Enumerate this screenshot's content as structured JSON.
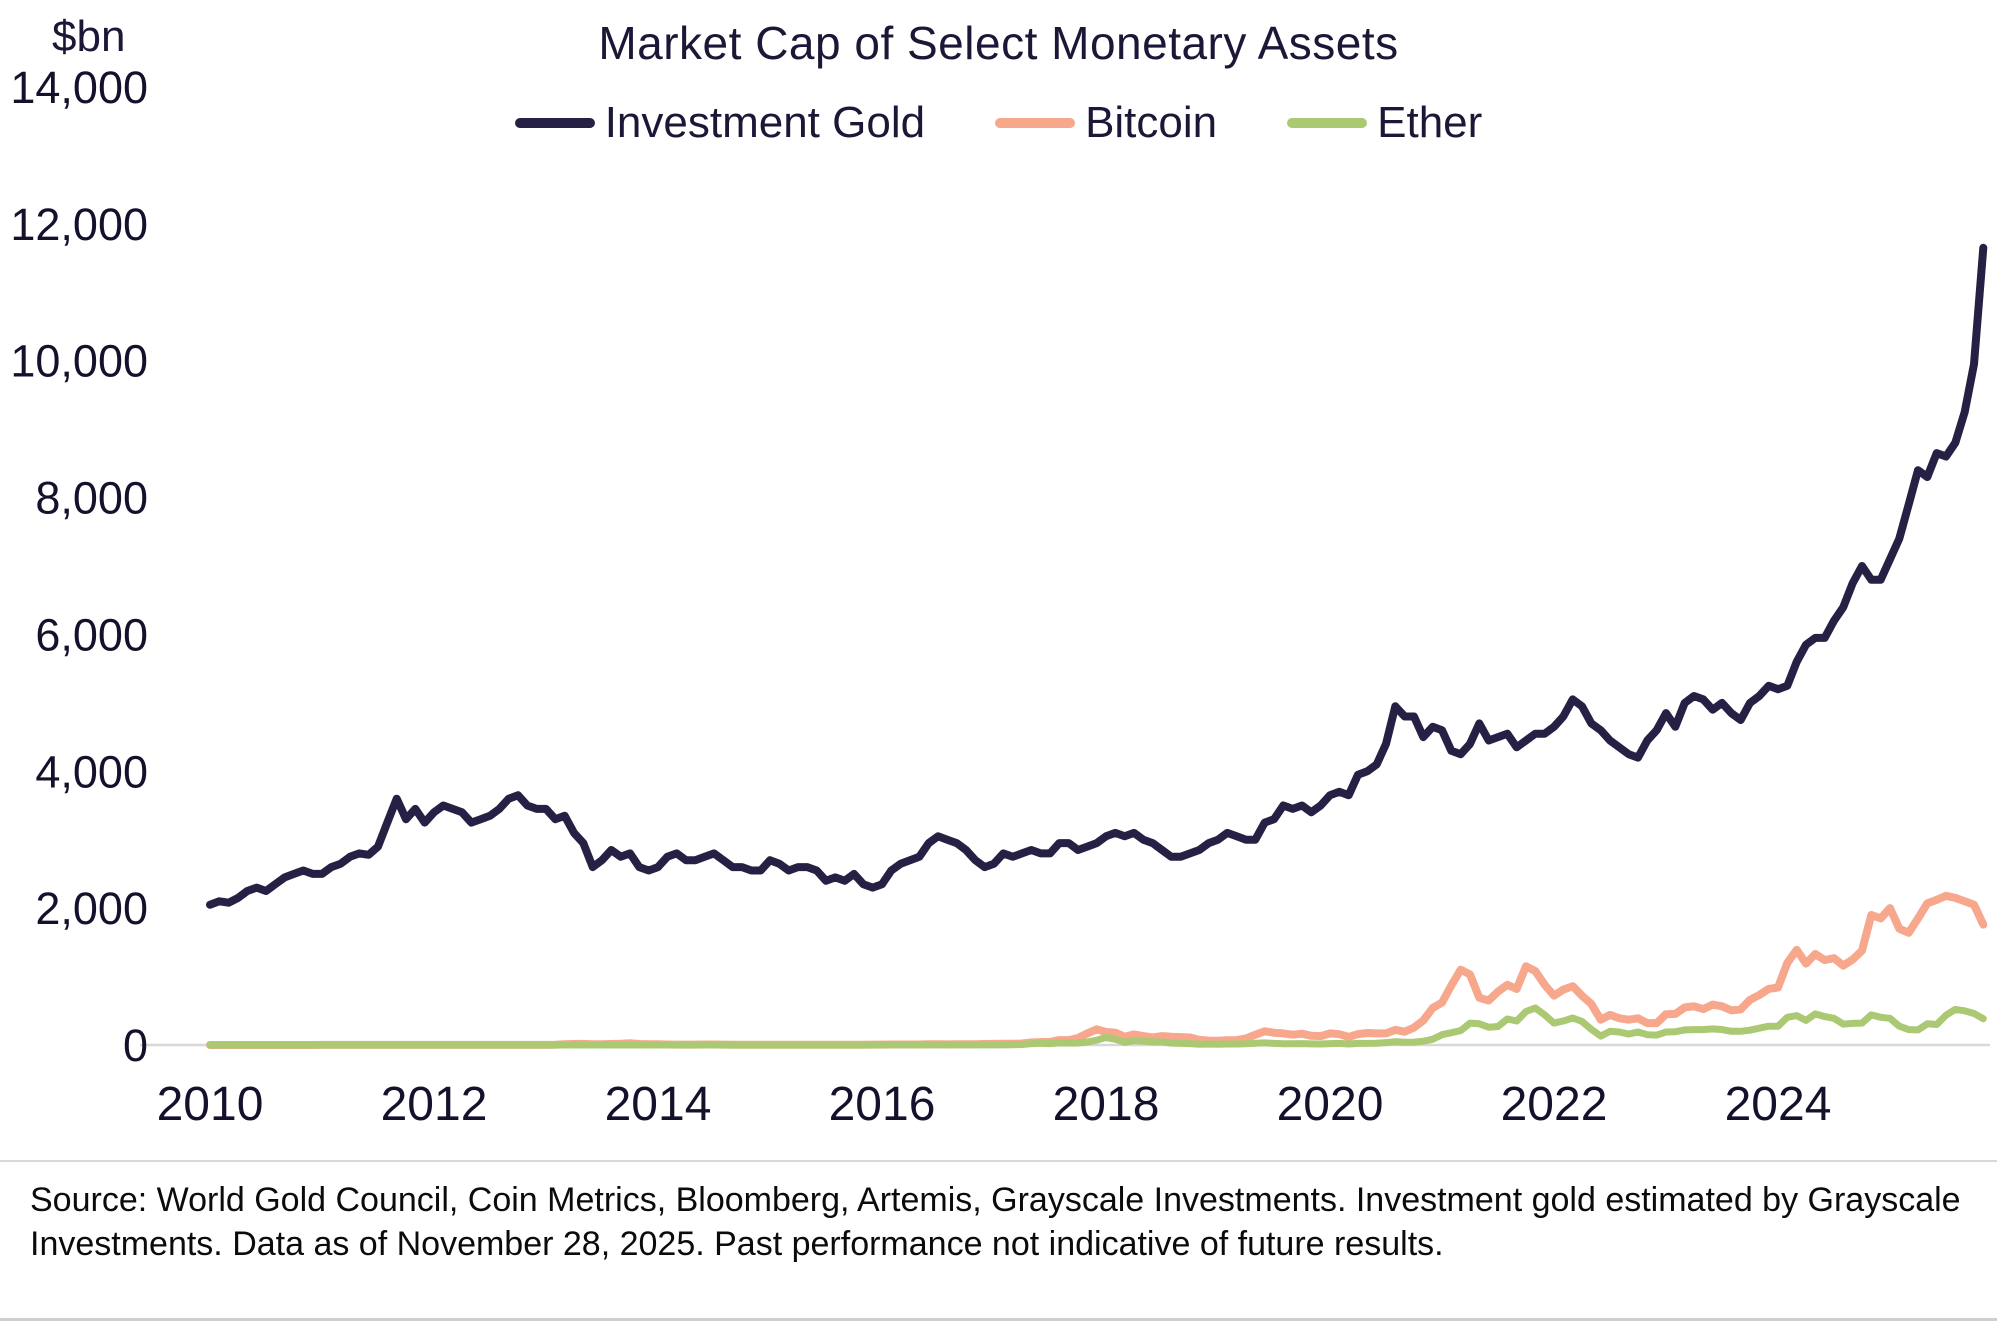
{
  "chart_data": {
    "type": "line",
    "title": "Market Cap of Select Monetary Assets",
    "unit_label": "$bn",
    "xlabel": "",
    "ylabel": "$bn",
    "start_year": 2010,
    "end_label": "November 2025",
    "x_ticks": [
      2010,
      2012,
      2014,
      2016,
      2018,
      2020,
      2022,
      2024
    ],
    "ylim": [
      0,
      14000
    ],
    "y_tick_step": 2000,
    "grid": false,
    "legend_position": "top-center",
    "text_color": "#15112c",
    "axis_line_color": "#d8d8d8",
    "series": [
      {
        "name": "Investment Gold",
        "color": "#262144",
        "stroke_width": 8,
        "values": [
          2050,
          2100,
          2080,
          2150,
          2250,
          2300,
          2250,
          2350,
          2450,
          2500,
          2550,
          2500,
          2500,
          2600,
          2650,
          2750,
          2800,
          2780,
          2900,
          3250,
          3600,
          3300,
          3450,
          3250,
          3400,
          3500,
          3450,
          3400,
          3250,
          3300,
          3350,
          3450,
          3600,
          3650,
          3500,
          3450,
          3450,
          3300,
          3350,
          3100,
          2950,
          2600,
          2700,
          2850,
          2750,
          2800,
          2600,
          2550,
          2600,
          2750,
          2800,
          2700,
          2700,
          2750,
          2800,
          2700,
          2600,
          2600,
          2550,
          2550,
          2700,
          2650,
          2550,
          2600,
          2600,
          2550,
          2400,
          2450,
          2400,
          2500,
          2350,
          2300,
          2350,
          2550,
          2650,
          2700,
          2750,
          2950,
          3050,
          3000,
          2950,
          2850,
          2700,
          2600,
          2650,
          2800,
          2750,
          2800,
          2850,
          2800,
          2800,
          2950,
          2950,
          2850,
          2900,
          2950,
          3050,
          3100,
          3050,
          3100,
          3000,
          2950,
          2850,
          2750,
          2750,
          2800,
          2850,
          2950,
          3000,
          3100,
          3050,
          3000,
          3000,
          3250,
          3300,
          3500,
          3450,
          3500,
          3400,
          3500,
          3650,
          3700,
          3650,
          3950,
          4000,
          4100,
          4400,
          4950,
          4800,
          4800,
          4500,
          4650,
          4600,
          4300,
          4250,
          4400,
          4700,
          4450,
          4500,
          4550,
          4350,
          4450,
          4550,
          4550,
          4650,
          4800,
          5050,
          4950,
          4700,
          4600,
          4450,
          4350,
          4250,
          4200,
          4450,
          4600,
          4850,
          4650,
          5000,
          5100,
          5050,
          4900,
          5000,
          4850,
          4750,
          5000,
          5100,
          5250,
          5200,
          5250,
          5600,
          5850,
          5950,
          5950,
          6200,
          6400,
          6750,
          7000,
          6800,
          6800,
          7100,
          7400,
          7900,
          8400,
          8300,
          8650,
          8600,
          8800,
          9250,
          9950,
          11650
        ]
      },
      {
        "name": "Bitcoin",
        "color": "#f7a78c",
        "stroke_width": 8,
        "values": [
          0,
          0,
          0,
          0,
          0,
          0,
          0,
          0,
          0,
          0,
          0,
          0,
          1,
          1,
          1,
          2,
          2,
          2,
          2,
          1,
          1,
          1,
          1,
          1,
          1,
          1,
          1,
          1,
          1,
          1,
          1,
          1,
          1,
          1,
          1,
          1,
          2,
          3,
          11,
          14,
          16,
          12,
          11,
          14,
          17,
          25,
          14,
          10,
          10,
          8,
          6,
          6,
          6,
          8,
          8,
          6,
          5,
          4,
          5,
          4,
          3,
          4,
          4,
          3,
          3,
          4,
          4,
          3,
          3,
          4,
          5,
          6,
          6,
          7,
          7,
          7,
          8,
          10,
          10,
          9,
          10,
          11,
          12,
          15,
          16,
          19,
          17,
          22,
          37,
          42,
          45,
          71,
          72,
          103,
          170,
          230,
          190,
          180,
          120,
          155,
          130,
          110,
          130,
          120,
          115,
          110,
          75,
          65,
          62,
          68,
          72,
          95,
          150,
          200,
          180,
          170,
          150,
          165,
          135,
          130,
          170,
          158,
          118,
          160,
          175,
          170,
          170,
          220,
          195,
          255,
          360,
          540,
          620,
          870,
          1100,
          1030,
          690,
          650,
          780,
          880,
          820,
          1150,
          1080,
          880,
          720,
          810,
          860,
          720,
          600,
          370,
          440,
          390,
          370,
          390,
          320,
          320,
          450,
          455,
          550,
          565,
          525,
          590,
          565,
          505,
          520,
          660,
          730,
          820,
          840,
          1200,
          1390,
          1190,
          1330,
          1240,
          1270,
          1160,
          1250,
          1380,
          1900,
          1850,
          2000,
          1700,
          1640,
          1850,
          2070,
          2120,
          2180,
          2150,
          2100,
          2050,
          1760
        ]
      },
      {
        "name": "Ether",
        "color": "#abc873",
        "stroke_width": 7,
        "values": [
          0,
          0,
          0,
          0,
          0,
          0,
          0,
          0,
          0,
          0,
          0,
          0,
          0,
          0,
          0,
          0,
          0,
          0,
          0,
          0,
          0,
          0,
          0,
          0,
          0,
          0,
          0,
          0,
          0,
          0,
          0,
          0,
          0,
          0,
          0,
          0,
          0,
          0,
          0,
          0,
          0,
          0,
          0,
          0,
          0,
          0,
          0,
          0,
          0,
          0,
          0,
          0,
          0,
          0,
          0,
          0,
          0,
          0,
          0,
          0,
          0,
          0,
          0,
          0,
          0,
          0,
          0,
          0,
          0,
          0,
          0,
          0,
          1,
          1,
          1,
          1,
          1,
          1,
          1,
          1,
          1,
          1,
          1,
          1,
          1,
          2,
          4,
          7,
          21,
          26,
          20,
          30,
          28,
          29,
          44,
          70,
          110,
          85,
          40,
          65,
          55,
          45,
          45,
          28,
          23,
          21,
          11,
          14,
          11,
          15,
          15,
          17,
          27,
          31,
          23,
          18,
          19,
          20,
          16,
          14,
          20,
          24,
          15,
          23,
          23,
          25,
          35,
          48,
          40,
          43,
          55,
          84,
          150,
          180,
          210,
          320,
          310,
          260,
          270,
          380,
          350,
          490,
          540,
          440,
          320,
          350,
          395,
          345,
          230,
          130,
          200,
          190,
          160,
          190,
          150,
          145,
          190,
          195,
          220,
          225,
          225,
          235,
          225,
          200,
          200,
          217,
          245,
          275,
          275,
          405,
          430,
          360,
          455,
          415,
          390,
          305,
          315,
          320,
          440,
          405,
          390,
          275,
          225,
          220,
          310,
          300,
          435,
          520,
          500,
          460,
          385
        ]
      }
    ]
  },
  "source": {
    "text": "Source: World Gold Council, Coin Metrics, Bloomberg, Artemis, Grayscale Investments. Investment gold estimated by Grayscale Investments. Data as of November 28, 2025. Past performance not indicative of future results."
  }
}
